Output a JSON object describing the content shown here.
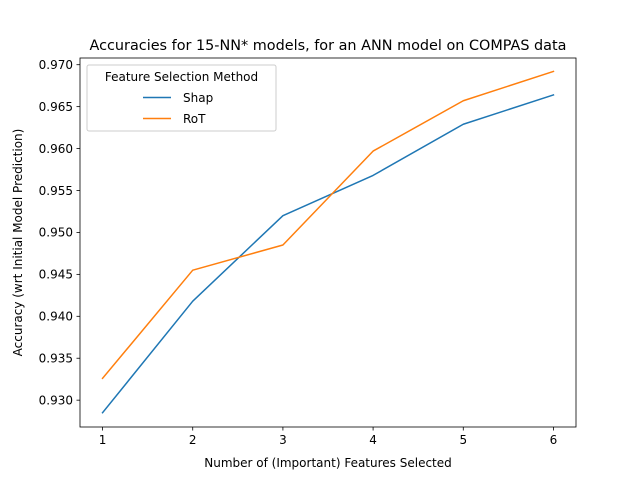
{
  "chart_data": {
    "type": "line",
    "title": "Accuracies for 15-NN* models, for an ANN model on COMPAS data",
    "xlabel": "Number of (Important) Features Selected",
    "ylabel": "Accuracy (wrt Initial Model Prediction)",
    "x": [
      1,
      2,
      3,
      4,
      5,
      6
    ],
    "xticks": [
      "1",
      "2",
      "3",
      "4",
      "5",
      "6"
    ],
    "yticks": [
      "0.930",
      "0.935",
      "0.940",
      "0.945",
      "0.950",
      "0.955",
      "0.960",
      "0.965",
      "0.970"
    ],
    "xlim": [
      0.75,
      6.25
    ],
    "ylim": [
      0.9268,
      0.9708
    ],
    "grid": false,
    "legend": {
      "title": "Feature Selection Method",
      "placement": "top-left"
    },
    "series": [
      {
        "name": "Shap",
        "color": "#1f77b4",
        "values": [
          0.9285,
          0.9418,
          0.952,
          0.9568,
          0.9629,
          0.9664
        ]
      },
      {
        "name": "RoT",
        "color": "#ff7f0e",
        "values": [
          0.9326,
          0.9455,
          0.9485,
          0.9597,
          0.9657,
          0.9692
        ]
      }
    ]
  }
}
